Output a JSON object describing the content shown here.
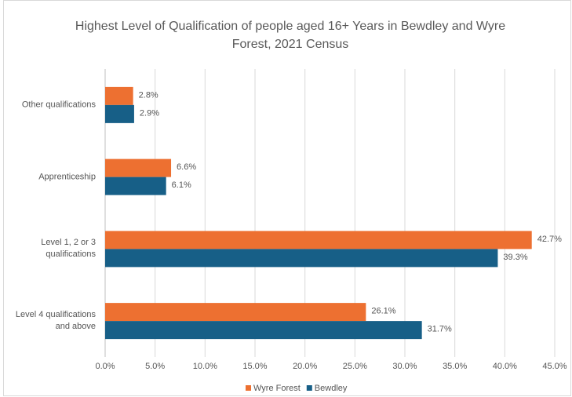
{
  "chart_data": {
    "type": "hbar",
    "title": "Highest Level of Qualification of people aged 16+ Years in Bewdley and Wyre Forest, 2021 Census",
    "categories": [
      "Other qualifications",
      "Apprenticeship",
      "Level 1, 2 or 3 qualifications",
      "Level 4 qualifications and above"
    ],
    "series": [
      {
        "name": "Wyre Forest",
        "color": "#ed7031",
        "values": [
          2.8,
          6.6,
          42.7,
          26.1
        ],
        "value_labels": [
          "2.8%",
          "6.6%",
          "42.7%",
          "26.1%"
        ]
      },
      {
        "name": "Bewdley",
        "color": "#175f87",
        "values": [
          2.9,
          6.1,
          39.3,
          31.7
        ],
        "value_labels": [
          "2.9%",
          "6.1%",
          "39.3%",
          "31.7%"
        ]
      }
    ],
    "xlim": [
      0,
      45
    ],
    "xticks": [
      {
        "value": 0,
        "label": "0.0%"
      },
      {
        "value": 5,
        "label": "5.0%"
      },
      {
        "value": 10,
        "label": "10.0%"
      },
      {
        "value": 15,
        "label": "15.0%"
      },
      {
        "value": 20,
        "label": "20.0%"
      },
      {
        "value": 25,
        "label": "25.0%"
      },
      {
        "value": 30,
        "label": "30.0%"
      },
      {
        "value": 35,
        "label": "35.0%"
      },
      {
        "value": 40,
        "label": "40.0%"
      },
      {
        "value": 45,
        "label": "45.0%"
      }
    ],
    "grid": true,
    "legend": "bottom"
  }
}
